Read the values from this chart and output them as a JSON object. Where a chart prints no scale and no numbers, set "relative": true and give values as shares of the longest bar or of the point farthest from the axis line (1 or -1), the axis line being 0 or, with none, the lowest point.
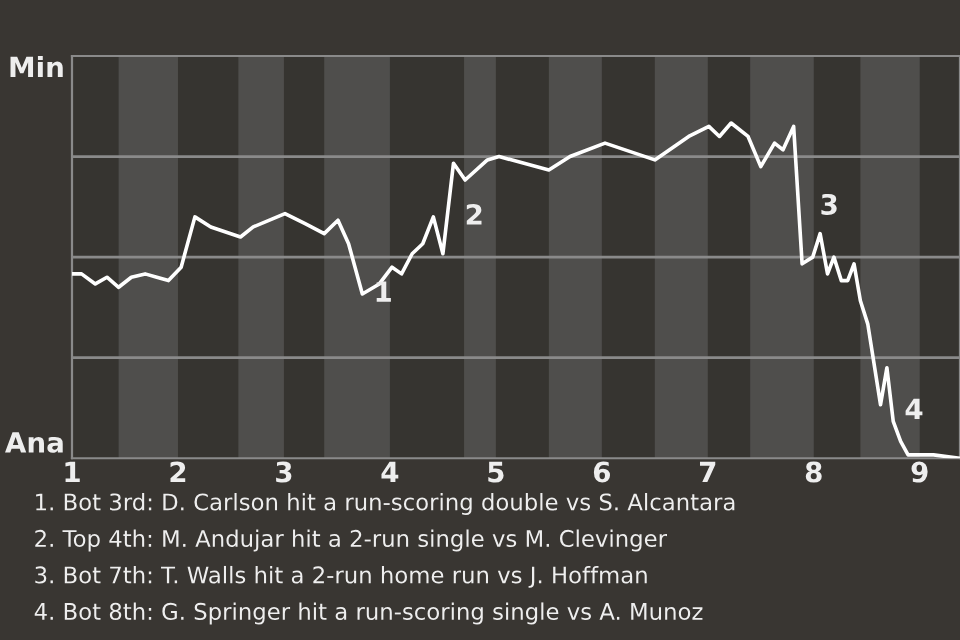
{
  "chart_data": {
    "type": "line",
    "relative": true,
    "x": [
      1,
      1.09,
      1.22,
      1.33,
      1.44,
      1.56,
      1.69,
      1.8,
      1.91,
      2.03,
      2.16,
      2.31,
      2.59,
      2.71,
      3.01,
      3.2,
      3.38,
      3.51,
      3.61,
      3.74,
      3.9,
      4.02,
      4.11,
      4.21,
      4.31,
      4.41,
      4.5,
      4.6,
      4.71,
      4.92,
      5.03,
      5.5,
      5.7,
      6.03,
      6.5,
      6.82,
      7.01,
      7.11,
      7.22,
      7.38,
      7.5,
      7.63,
      7.71,
      7.81,
      7.89,
      7.99,
      8.06,
      8.13,
      8.19,
      8.26,
      8.32,
      8.38,
      8.44,
      8.51,
      8.63,
      8.69,
      8.75,
      8.82,
      8.89,
      8.96,
      9.13,
      9.38
    ],
    "series": [
      {
        "color": "#ffffff",
        "values": [
          0.55,
          0.55,
          0.52,
          0.54,
          0.51,
          0.54,
          0.55,
          0.54,
          0.53,
          0.57,
          0.72,
          0.69,
          0.66,
          0.69,
          0.73,
          0.7,
          0.67,
          0.71,
          0.64,
          0.49,
          0.52,
          0.57,
          0.55,
          0.61,
          0.64,
          0.72,
          0.61,
          0.88,
          0.83,
          0.89,
          0.9,
          0.86,
          0.9,
          0.94,
          0.89,
          0.96,
          0.99,
          0.96,
          1,
          0.96,
          0.87,
          0.94,
          0.92,
          0.99,
          0.58,
          0.6,
          0.67,
          0.55,
          0.6,
          0.53,
          0.53,
          0.58,
          0.47,
          0.4,
          0.16,
          0.27,
          0.11,
          0.05,
          0.01,
          0.01,
          0.01,
          0
        ]
      }
    ],
    "xlim": [
      1,
      9.38
    ],
    "xticks": [
      1,
      2,
      3,
      4,
      5,
      6,
      7,
      8,
      9
    ],
    "grid": "y",
    "marker": "none",
    "line_style": "solid",
    "bands": [
      {
        "axis": "x",
        "from": 1.44,
        "to": 2,
        "color": "#4f4e4c"
      },
      {
        "axis": "x",
        "from": 2.57,
        "to": 3,
        "color": "#4f4e4c"
      },
      {
        "axis": "x",
        "from": 3.38,
        "to": 4,
        "color": "#4f4e4c"
      },
      {
        "axis": "x",
        "from": 4.7,
        "to": 5,
        "color": "#4f4e4c"
      },
      {
        "axis": "x",
        "from": 5.5,
        "to": 6,
        "color": "#4f4e4c"
      },
      {
        "axis": "x",
        "from": 6.5,
        "to": 7,
        "color": "#4f4e4c"
      },
      {
        "axis": "x",
        "from": 7.4,
        "to": 8,
        "color": "#4f4e4c"
      },
      {
        "axis": "x",
        "from": 8.44,
        "to": 9,
        "color": "#4f4e4c"
      }
    ],
    "annotations": [
      {
        "text": "1",
        "x": 3.74,
        "y": 0.49
      },
      {
        "text": "2",
        "x": 4.6,
        "y": 0.72
      },
      {
        "text": "3",
        "x": 7.95,
        "y": 0.75
      },
      {
        "text": "4",
        "x": 8.75,
        "y": 0.14
      },
      "Min",
      "Ana",
      "1. Bot 3rd: D. Carlson hit a run-scoring double vs S. Alcantara",
      "2. Top 4th: M. Andujar hit a 2-run single vs M. Clevinger",
      "3. Bot 7th: T. Walls hit a 2-run home run vs J. Hoffman",
      "4. Bot 8th: G. Springer hit a run-scoring single vs A. Munoz"
    ]
  }
}
